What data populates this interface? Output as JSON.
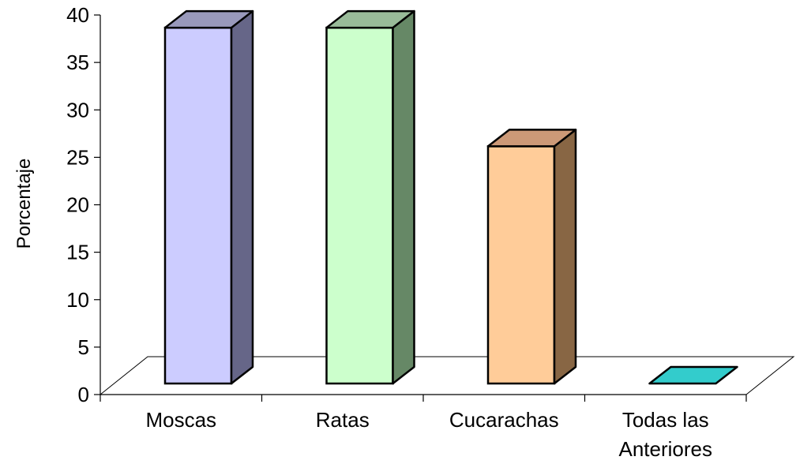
{
  "chart_data": {
    "type": "bar",
    "style": "3d-column",
    "categories": [
      "Moscas",
      "Ratas",
      "Cucarachas",
      "Todas las\nAnteriores"
    ],
    "values": [
      37.5,
      37.5,
      25,
      0
    ],
    "ylabel": "Porcentaje",
    "xlabel": "",
    "ylim": [
      0,
      40
    ],
    "yticks": [
      0,
      5,
      10,
      15,
      20,
      25,
      30,
      35,
      40
    ],
    "grid": false,
    "legend": "none",
    "colors": [
      {
        "front": "#ccccff",
        "side": "#666688",
        "top": "#9999bb"
      },
      {
        "front": "#ccffcc",
        "side": "#668866",
        "top": "#99bb99"
      },
      {
        "front": "#ffcc99",
        "side": "#886644",
        "top": "#cc9977"
      },
      {
        "front": "#33cccc",
        "side": "#1f8080",
        "top": "#33cccc"
      }
    ]
  }
}
